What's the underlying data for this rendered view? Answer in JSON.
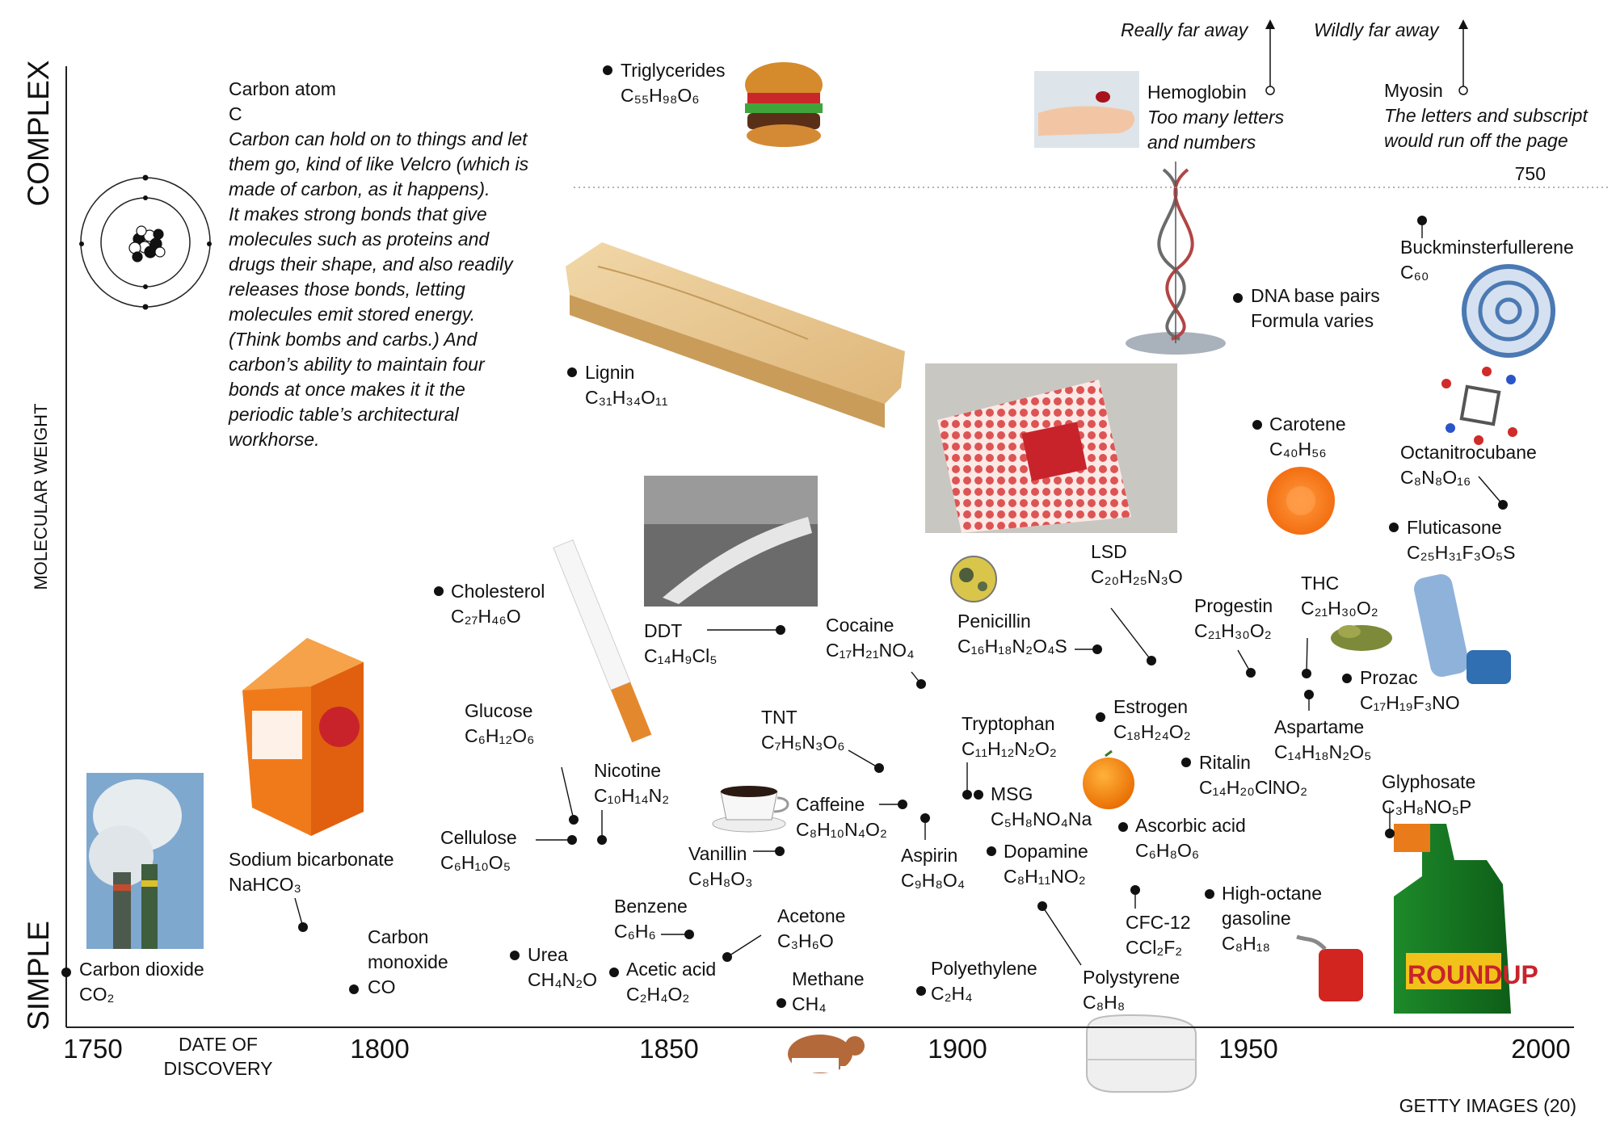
{
  "chart_data": {
    "type": "scatter",
    "xlabel": "DATE OF DISCOVERY",
    "ylabel": "MOLECULAR WEIGHT",
    "ylabel_top": "COMPLEX",
    "ylabel_bottom": "SIMPLE",
    "x_ticks": [
      "1750",
      "1800",
      "1850",
      "1900",
      "1950",
      "2000"
    ],
    "xlim": [
      1750,
      2000
    ],
    "y_break_label": "750",
    "credit": "GETTY IMAGES (20)",
    "intro": {
      "title": "Carbon atom",
      "formula": "C",
      "text": [
        "Carbon can hold on to things and let",
        "them go, kind of like Velcro (which is",
        "made of carbon, as it happens).",
        "It makes strong bonds that give",
        "molecules such as proteins and",
        "drugs their shape, and also readily",
        "releases those bonds, letting",
        "molecules emit stored energy.",
        "(Think bombs and carbs.) And",
        "carbon’s ability to maintain four",
        "bonds at once makes it it the",
        "periodic table’s architectural",
        "workhorse."
      ]
    },
    "offchart": [
      {
        "name": "Hemoglobin",
        "note": [
          "Too many letters",
          "and numbers"
        ],
        "arrow": "Really far away"
      },
      {
        "name": "Myosin",
        "note": [
          "The letters and subscript",
          "would run off the page"
        ],
        "arrow": "Wildly far away"
      }
    ],
    "points": [
      {
        "name": "Carbon dioxide",
        "formula": "CO₂",
        "year": 1750,
        "mw": 44
      },
      {
        "name": "Sodium bicarbonate",
        "formula": "NaHCO₃",
        "year": 1791,
        "mw": 84
      },
      {
        "name": "Carbon monoxide",
        "formula": "CO",
        "year": 1800,
        "mw": 28
      },
      {
        "name": "Urea",
        "formula": "CH₄N₂O",
        "year": 1828,
        "mw": 60
      },
      {
        "name": "Acetic acid",
        "formula": "C₂H₄O₂",
        "year": 1845,
        "mw": 60
      },
      {
        "name": "Cholesterol",
        "formula": "C₂₇H₄₆O",
        "year": 1815,
        "mw": 387
      },
      {
        "name": "Glucose",
        "formula": "C₆H₁₂O₆",
        "year": 1838,
        "mw": 180
      },
      {
        "name": "Cellulose",
        "formula": "C₆H₁₀O₅",
        "year": 1838,
        "mw": 162
      },
      {
        "name": "Nicotine",
        "formula": "C₁₀H₁₄N₂",
        "year": 1843,
        "mw": 162
      },
      {
        "name": "Triglycerides",
        "formula": "C₅₅H₉₈O₆",
        "year": 1846,
        "mw": 855
      },
      {
        "name": "Lignin",
        "formula": "C₃₁H₃₄O₁₁",
        "year": 1838,
        "mw": 582
      },
      {
        "name": "Benzene",
        "formula": "C₆H₆",
        "year": 1858,
        "mw": 78
      },
      {
        "name": "Acetone",
        "formula": "C₃H₆O",
        "year": 1865,
        "mw": 58
      },
      {
        "name": "Methane",
        "formula": "CH₄",
        "year": 1876,
        "mw": 16
      },
      {
        "name": "Vanillin",
        "formula": "C₈H₈O₃",
        "year": 1876,
        "mw": 152
      },
      {
        "name": "DDT",
        "formula": "C₁₄H₉Cl₅",
        "year": 1874,
        "mw": 355
      },
      {
        "name": "TNT",
        "formula": "C₇H₅N₃O₆",
        "year": 1881,
        "mw": 227
      },
      {
        "name": "Caffeine",
        "formula": "C₈H₁₀N₄O₂",
        "year": 1885,
        "mw": 194
      },
      {
        "name": "Cocaine",
        "formula": "C₁₇H₂₁NO₄",
        "year": 1896,
        "mw": 303
      },
      {
        "name": "Aspirin",
        "formula": "C₉H₈O₄",
        "year": 1897,
        "mw": 180
      },
      {
        "name": "Polyethylene",
        "formula": "C₂H₄",
        "year": 1898,
        "mw": 28
      },
      {
        "name": "Tryptophan",
        "formula": "C₁₁H₁₂N₂O₂",
        "year": 1901,
        "mw": 204
      },
      {
        "name": "MSG",
        "formula": "C₅H₈NO₄Na",
        "year": 1908,
        "mw": 169
      },
      {
        "name": "Dopamine",
        "formula": "C₈H₁₁NO₂",
        "year": 1910,
        "mw": 153
      },
      {
        "name": "Polystyrene",
        "formula": "C₈H₈",
        "year": 1920,
        "mw": 104
      },
      {
        "name": "Penicillin",
        "formula": "C₁₆H₁₈N₂O₄S",
        "year": 1928,
        "mw": 334
      },
      {
        "name": "Estrogen",
        "formula": "C₁₈H₂₄O₂",
        "year": 1929,
        "mw": 272
      },
      {
        "name": "Ascorbic acid",
        "formula": "C₆H₈O₆",
        "year": 1932,
        "mw": 176
      },
      {
        "name": "CFC-12",
        "formula": "CCl₂F₂",
        "year": 1938,
        "mw": 121
      },
      {
        "name": "LSD",
        "formula": "C₂₀H₂₅N₃O",
        "year": 1938,
        "mw": 323
      },
      {
        "name": "Ritalin",
        "formula": "C₁₄H₂₀ClNO₂",
        "year": 1944,
        "mw": 234
      },
      {
        "name": "High-octane gasoline",
        "formula": "C₈H₁₈",
        "year": 1949,
        "mw": 114
      },
      {
        "name": "Carotene",
        "formula": "C₄₀H₅₆",
        "year": 1955,
        "mw": 537
      },
      {
        "name": "DNA base pairs",
        "formula": "Formula varies",
        "year": 1953,
        "mw": 650
      },
      {
        "name": "Progestin",
        "formula": "C₂₁H₃₀O₂",
        "year": 1951,
        "mw": 314
      },
      {
        "name": "THC",
        "formula": "C₂₁H₃₀O₂",
        "year": 1964,
        "mw": 314
      },
      {
        "name": "Aspartame",
        "formula": "C₁₄H₁₈N₂O₅",
        "year": 1965,
        "mw": 294
      },
      {
        "name": "Prozac",
        "formula": "C₁₇H₁₉F₃NO",
        "year": 1972,
        "mw": 309
      },
      {
        "name": "Glyphosate",
        "formula": "C₃H₈NO₅P",
        "year": 1970,
        "mw": 169
      },
      {
        "name": "Fluticasone",
        "formula": "C₂₅H₃₁F₃O₅S",
        "year": 1980,
        "mw": 500
      },
      {
        "name": "Octanitrocubane",
        "formula": "C₈N₈O₁₆",
        "year": 1999,
        "mw": 464
      },
      {
        "name": "Buckminsterfullerene",
        "formula": "C₆₀",
        "year": 1985,
        "mw": 720
      }
    ]
  }
}
